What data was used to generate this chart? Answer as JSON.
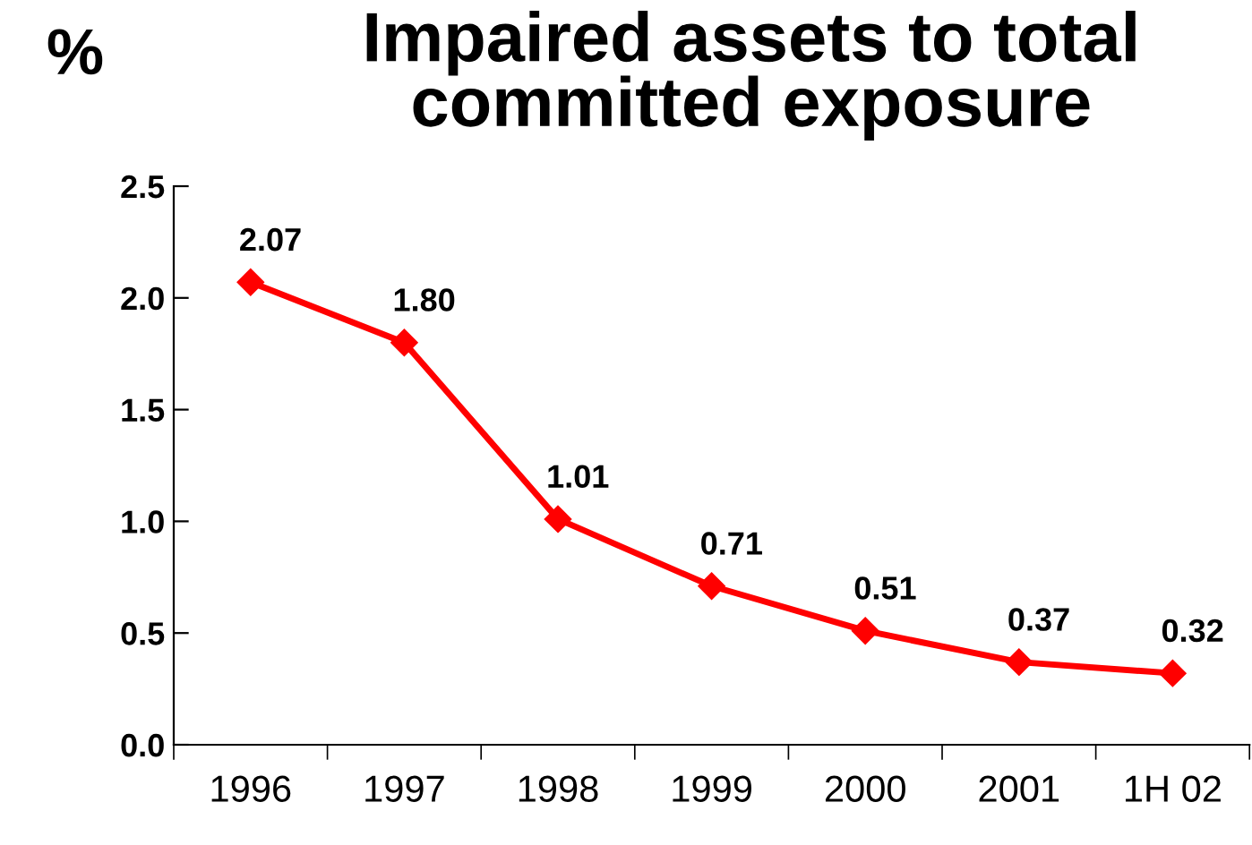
{
  "chart_data": {
    "type": "line",
    "title": "Impaired assets to total\ncommitted exposure",
    "ylabel": "%",
    "categories": [
      "1996",
      "1997",
      "1998",
      "1999",
      "2000",
      "2001",
      "1H 02"
    ],
    "series": [
      {
        "color": "#ff0000",
        "values": [
          2.07,
          1.8,
          1.01,
          0.71,
          0.51,
          0.37,
          0.32
        ]
      }
    ],
    "value_labels": [
      "2.07",
      "1.80",
      "1.01",
      "0.71",
      "0.51",
      "0.37",
      "0.32"
    ],
    "ylim": [
      0,
      2.5
    ],
    "yticks": [
      {
        "value": 0,
        "label": "0.0"
      },
      {
        "value": 0.5,
        "label": "0.5"
      },
      {
        "value": 1,
        "label": "1.0"
      },
      {
        "value": 1.5,
        "label": "1.5"
      },
      {
        "value": 2,
        "label": "2.0"
      },
      {
        "value": 2.5,
        "label": "2.5"
      }
    ],
    "marker": "diamond",
    "line_style": "solid",
    "grid": false,
    "legend": false
  }
}
